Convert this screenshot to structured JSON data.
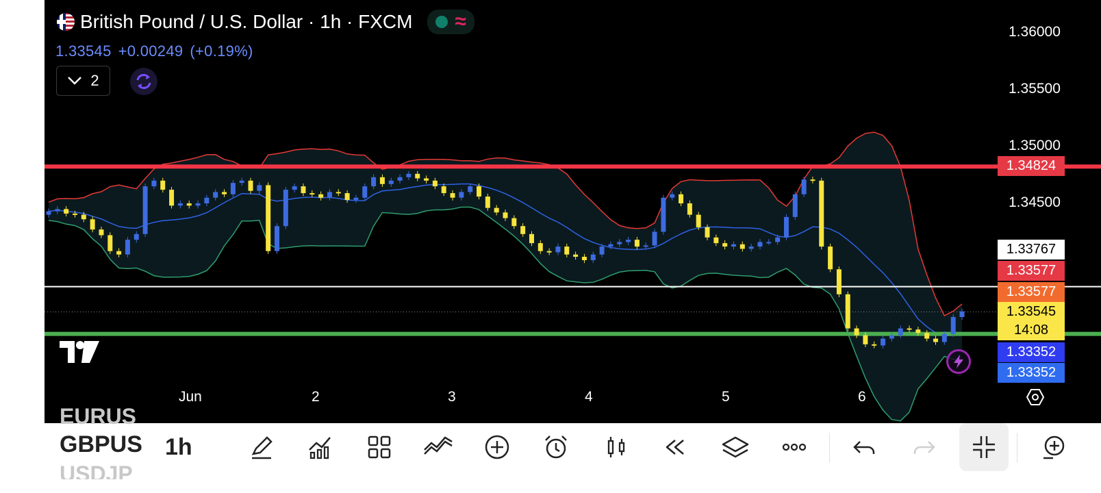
{
  "symbol": {
    "title": "British Pound / U.S. Dollar · 1h · FXCM",
    "last_price": "1.33545",
    "change": "+0.00249",
    "change_pct": "(+0.19%)",
    "indicator_count": "2"
  },
  "price_axis": [
    "1.36000",
    "1.35500",
    "1.35000",
    "1.34500"
  ],
  "price_tags": [
    {
      "label": "1.34824",
      "bg": "#e53945",
      "fg": "#ffffff"
    },
    {
      "label": "1.33767",
      "bg": "#ffffff",
      "fg": "#000000"
    },
    {
      "label": "1.33577",
      "bg": "#e53945",
      "fg": "#ffffff"
    },
    {
      "label": "1.33577",
      "bg": "#f26b2e",
      "fg": "#ffffff"
    },
    {
      "label": "1.33545",
      "bg": "#fbe64a",
      "fg": "#000000"
    },
    {
      "label": "14:08",
      "bg": "#fbe64a",
      "fg": "#000000"
    },
    {
      "label": "1.33352",
      "bg": "#2f3cf0",
      "fg": "#ffffff"
    },
    {
      "label": "1.33352",
      "bg": "#2f6cf0",
      "fg": "#ffffff"
    }
  ],
  "time_axis": [
    "Jun",
    "2",
    "3",
    "4",
    "5",
    "6"
  ],
  "horizontal_lines": [
    {
      "price": 1.34824,
      "color": "#f23645"
    },
    {
      "price": 1.33767,
      "color": "#ffffff"
    },
    {
      "price": 1.33352,
      "color": "#4caf50"
    }
  ],
  "colors": {
    "up_candle": "#3d6be0",
    "down_candle": "#f7e43d",
    "bb_upper": "#e53935",
    "bb_basis": "#2f62e6",
    "bb_lower": "#2e9e6e",
    "bb_fill": "#0b1a1f"
  },
  "chart_data": {
    "type": "candlestick",
    "instrument": "GBPUSD",
    "timeframe": "1h",
    "y_range": [
      1.3315,
      1.3615
    ],
    "x_labels": [
      "Jun",
      "2",
      "3",
      "4",
      "5",
      "6"
    ],
    "close_path": [
      1.3443,
      1.3445,
      1.3441,
      1.344,
      1.3436,
      1.3427,
      1.3422,
      1.3408,
      1.3405,
      1.3418,
      1.3423,
      1.3465,
      1.347,
      1.3462,
      1.3448,
      1.345,
      1.3448,
      1.345,
      1.3455,
      1.346,
      1.3458,
      1.3468,
      1.347,
      1.3461,
      1.3466,
      1.3408,
      1.343,
      1.3462,
      1.3465,
      1.3459,
      1.3458,
      1.3455,
      1.346,
      1.3459,
      1.3453,
      1.3455,
      1.3465,
      1.3473,
      1.3467,
      1.347,
      1.3473,
      1.3476,
      1.3472,
      1.347,
      1.3465,
      1.3459,
      1.3455,
      1.346,
      1.3465,
      1.3456,
      1.3446,
      1.3442,
      1.3437,
      1.343,
      1.3423,
      1.3415,
      1.3408,
      1.3407,
      1.3412,
      1.3405,
      1.3403,
      1.34,
      1.3405,
      1.3412,
      1.3414,
      1.3416,
      1.3418,
      1.3412,
      1.3413,
      1.3425,
      1.3455,
      1.3458,
      1.345,
      1.344,
      1.3429,
      1.342,
      1.3415,
      1.3412,
      1.3414,
      1.341,
      1.3412,
      1.3416,
      1.3416,
      1.342,
      1.3438,
      1.3458,
      1.3471,
      1.347,
      1.3412,
      1.3392,
      1.337,
      1.334,
      1.3334,
      1.3326,
      1.3325,
      1.3331,
      1.3334,
      1.334,
      1.3339,
      1.3336,
      1.3331,
      1.3328,
      1.3335,
      1.335,
      1.3355
    ]
  }
}
